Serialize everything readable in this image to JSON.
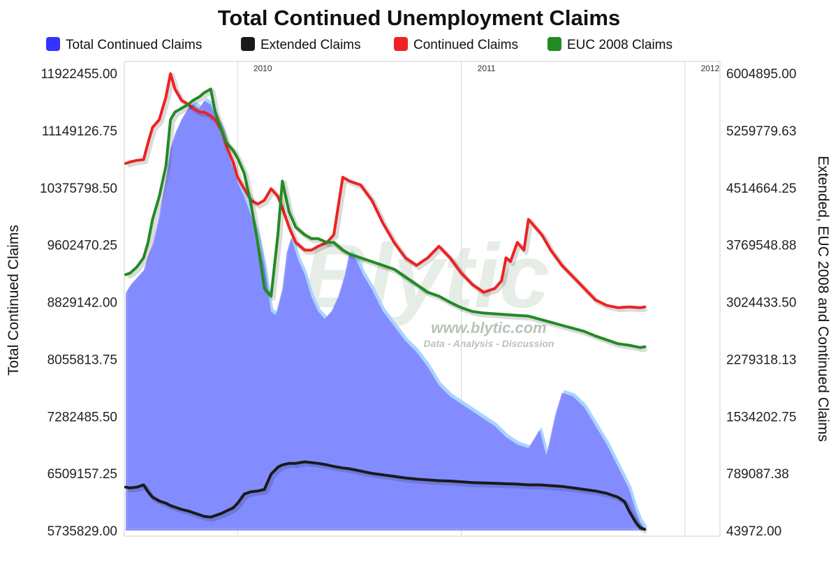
{
  "chart_data": {
    "type": "area",
    "title": "Total Continued Unemployment Claims",
    "ylabel_left": "Total Continued Claims",
    "ylabel_right": "Extended, EUC 2008 and Continued Claims",
    "x_labels": [
      "2010",
      "2011",
      "2012"
    ],
    "y_left_ticks": [
      "11922455.00",
      "11149126.75",
      "10375798.50",
      "9602470.25",
      "8829142.00",
      "8055813.75",
      "7282485.50",
      "6509157.25",
      "5735829.00"
    ],
    "y_right_ticks": [
      "6004895.00",
      "5259779.63",
      "4514664.25",
      "3769548.88",
      "3024433.50",
      "2279318.13",
      "1534202.75",
      "789087.38",
      "43972.00"
    ],
    "ylim_left": [
      5735829,
      11922455
    ],
    "ylim_right": [
      43972,
      6004895
    ],
    "x_range": [
      2009.5,
      2012.15
    ],
    "x_label_positions": [
      2010.0,
      2011.0,
      2012.0
    ],
    "grid": true,
    "legend_position": "top",
    "series": [
      {
        "name": "Total Continued Claims",
        "axis": "left",
        "style": "area",
        "color": "#7777ff",
        "points": [
          [
            2009.5,
            8950000
          ],
          [
            2009.52,
            9050000
          ],
          [
            2009.55,
            9150000
          ],
          [
            2009.58,
            9250000
          ],
          [
            2009.6,
            9450000
          ],
          [
            2009.62,
            9600000
          ],
          [
            2009.65,
            10000000
          ],
          [
            2009.68,
            10500000
          ],
          [
            2009.7,
            10900000
          ],
          [
            2009.72,
            11100000
          ],
          [
            2009.75,
            11300000
          ],
          [
            2009.78,
            11450000
          ],
          [
            2009.8,
            11500000
          ],
          [
            2009.83,
            11450000
          ],
          [
            2009.85,
            11550000
          ],
          [
            2009.88,
            11500000
          ],
          [
            2009.9,
            11350000
          ],
          [
            2009.93,
            11150000
          ],
          [
            2009.95,
            10900000
          ],
          [
            2009.98,
            10650000
          ],
          [
            2010.0,
            10450000
          ],
          [
            2010.03,
            10250000
          ],
          [
            2010.06,
            10000000
          ],
          [
            2010.09,
            9700000
          ],
          [
            2010.12,
            9300000
          ],
          [
            2010.14,
            8900000
          ],
          [
            2010.15,
            8700000
          ],
          [
            2010.17,
            8650000
          ],
          [
            2010.2,
            9000000
          ],
          [
            2010.22,
            9500000
          ],
          [
            2010.24,
            9700000
          ],
          [
            2010.27,
            9400000
          ],
          [
            2010.3,
            9200000
          ],
          [
            2010.33,
            8900000
          ],
          [
            2010.36,
            8700000
          ],
          [
            2010.39,
            8600000
          ],
          [
            2010.42,
            8700000
          ],
          [
            2010.45,
            8900000
          ],
          [
            2010.48,
            9200000
          ],
          [
            2010.5,
            9500000
          ],
          [
            2010.53,
            9400000
          ],
          [
            2010.56,
            9200000
          ],
          [
            2010.6,
            9000000
          ],
          [
            2010.65,
            8700000
          ],
          [
            2010.7,
            8500000
          ],
          [
            2010.75,
            8300000
          ],
          [
            2010.8,
            8150000
          ],
          [
            2010.85,
            7950000
          ],
          [
            2010.9,
            7700000
          ],
          [
            2010.95,
            7550000
          ],
          [
            2011.0,
            7450000
          ],
          [
            2011.05,
            7350000
          ],
          [
            2011.1,
            7250000
          ],
          [
            2011.15,
            7150000
          ],
          [
            2011.2,
            7000000
          ],
          [
            2011.25,
            6900000
          ],
          [
            2011.3,
            6850000
          ],
          [
            2011.35,
            7100000
          ],
          [
            2011.38,
            6750000
          ],
          [
            2011.42,
            7300000
          ],
          [
            2011.45,
            7600000
          ],
          [
            2011.5,
            7550000
          ],
          [
            2011.55,
            7400000
          ],
          [
            2011.6,
            7150000
          ],
          [
            2011.65,
            6900000
          ],
          [
            2011.7,
            6600000
          ],
          [
            2011.75,
            6300000
          ],
          [
            2011.78,
            6000000
          ],
          [
            2011.8,
            5850000
          ],
          [
            2011.82,
            5760000
          ]
        ]
      },
      {
        "name": "Extended Claims",
        "axis": "right",
        "style": "line",
        "color": "#1a1a1a",
        "points": [
          [
            2009.5,
            610000
          ],
          [
            2009.52,
            600000
          ],
          [
            2009.55,
            610000
          ],
          [
            2009.58,
            640000
          ],
          [
            2009.6,
            550000
          ],
          [
            2009.62,
            480000
          ],
          [
            2009.65,
            430000
          ],
          [
            2009.68,
            400000
          ],
          [
            2009.7,
            370000
          ],
          [
            2009.72,
            350000
          ],
          [
            2009.75,
            320000
          ],
          [
            2009.78,
            300000
          ],
          [
            2009.8,
            280000
          ],
          [
            2009.83,
            250000
          ],
          [
            2009.85,
            230000
          ],
          [
            2009.88,
            220000
          ],
          [
            2009.9,
            240000
          ],
          [
            2009.93,
            270000
          ],
          [
            2009.95,
            300000
          ],
          [
            2009.98,
            340000
          ],
          [
            2010.0,
            400000
          ],
          [
            2010.03,
            520000
          ],
          [
            2010.06,
            550000
          ],
          [
            2010.09,
            560000
          ],
          [
            2010.12,
            580000
          ],
          [
            2010.15,
            780000
          ],
          [
            2010.18,
            870000
          ],
          [
            2010.2,
            900000
          ],
          [
            2010.23,
            920000
          ],
          [
            2010.26,
            920000
          ],
          [
            2010.3,
            940000
          ],
          [
            2010.33,
            930000
          ],
          [
            2010.36,
            920000
          ],
          [
            2010.4,
            900000
          ],
          [
            2010.43,
            880000
          ],
          [
            2010.47,
            860000
          ],
          [
            2010.5,
            850000
          ],
          [
            2010.55,
            820000
          ],
          [
            2010.6,
            790000
          ],
          [
            2010.65,
            770000
          ],
          [
            2010.7,
            750000
          ],
          [
            2010.75,
            730000
          ],
          [
            2010.8,
            715000
          ],
          [
            2010.85,
            705000
          ],
          [
            2010.9,
            695000
          ],
          [
            2010.95,
            690000
          ],
          [
            2011.0,
            680000
          ],
          [
            2011.05,
            670000
          ],
          [
            2011.1,
            665000
          ],
          [
            2011.15,
            660000
          ],
          [
            2011.2,
            655000
          ],
          [
            2011.25,
            650000
          ],
          [
            2011.3,
            640000
          ],
          [
            2011.35,
            640000
          ],
          [
            2011.4,
            630000
          ],
          [
            2011.45,
            620000
          ],
          [
            2011.5,
            600000
          ],
          [
            2011.55,
            580000
          ],
          [
            2011.6,
            560000
          ],
          [
            2011.65,
            530000
          ],
          [
            2011.7,
            480000
          ],
          [
            2011.73,
            420000
          ],
          [
            2011.75,
            300000
          ],
          [
            2011.78,
            150000
          ],
          [
            2011.8,
            80000
          ],
          [
            2011.82,
            60000
          ]
        ]
      },
      {
        "name": "Continued Claims",
        "axis": "right",
        "style": "line",
        "color": "#ee2222",
        "points": [
          [
            2009.5,
            4830000
          ],
          [
            2009.52,
            4850000
          ],
          [
            2009.55,
            4870000
          ],
          [
            2009.58,
            4880000
          ],
          [
            2009.6,
            5100000
          ],
          [
            2009.62,
            5300000
          ],
          [
            2009.65,
            5400000
          ],
          [
            2009.68,
            5700000
          ],
          [
            2009.7,
            6000000
          ],
          [
            2009.72,
            5800000
          ],
          [
            2009.75,
            5650000
          ],
          [
            2009.78,
            5600000
          ],
          [
            2009.8,
            5550000
          ],
          [
            2009.83,
            5500000
          ],
          [
            2009.85,
            5500000
          ],
          [
            2009.88,
            5450000
          ],
          [
            2009.9,
            5400000
          ],
          [
            2009.93,
            5250000
          ],
          [
            2009.95,
            5050000
          ],
          [
            2009.98,
            4850000
          ],
          [
            2010.0,
            4650000
          ],
          [
            2010.03,
            4500000
          ],
          [
            2010.06,
            4350000
          ],
          [
            2010.09,
            4300000
          ],
          [
            2010.12,
            4350000
          ],
          [
            2010.15,
            4500000
          ],
          [
            2010.18,
            4400000
          ],
          [
            2010.2,
            4250000
          ],
          [
            2010.23,
            4000000
          ],
          [
            2010.26,
            3800000
          ],
          [
            2010.3,
            3700000
          ],
          [
            2010.33,
            3700000
          ],
          [
            2010.36,
            3750000
          ],
          [
            2010.4,
            3800000
          ],
          [
            2010.43,
            3900000
          ],
          [
            2010.47,
            4650000
          ],
          [
            2010.5,
            4600000
          ],
          [
            2010.55,
            4550000
          ],
          [
            2010.6,
            4350000
          ],
          [
            2010.65,
            4050000
          ],
          [
            2010.7,
            3800000
          ],
          [
            2010.75,
            3600000
          ],
          [
            2010.8,
            3500000
          ],
          [
            2010.85,
            3600000
          ],
          [
            2010.9,
            3750000
          ],
          [
            2010.95,
            3600000
          ],
          [
            2011.0,
            3400000
          ],
          [
            2011.05,
            3250000
          ],
          [
            2011.1,
            3150000
          ],
          [
            2011.15,
            3200000
          ],
          [
            2011.18,
            3300000
          ],
          [
            2011.2,
            3600000
          ],
          [
            2011.22,
            3550000
          ],
          [
            2011.25,
            3800000
          ],
          [
            2011.28,
            3700000
          ],
          [
            2011.3,
            4100000
          ],
          [
            2011.33,
            4000000
          ],
          [
            2011.36,
            3900000
          ],
          [
            2011.4,
            3700000
          ],
          [
            2011.45,
            3500000
          ],
          [
            2011.5,
            3350000
          ],
          [
            2011.55,
            3200000
          ],
          [
            2011.6,
            3050000
          ],
          [
            2011.65,
            2980000
          ],
          [
            2011.7,
            2950000
          ],
          [
            2011.75,
            2960000
          ],
          [
            2011.8,
            2950000
          ],
          [
            2011.82,
            2960000
          ]
        ]
      },
      {
        "name": "EUC 2008 Claims",
        "axis": "right",
        "style": "line",
        "color": "#228b22",
        "points": [
          [
            2009.5,
            3380000
          ],
          [
            2009.52,
            3400000
          ],
          [
            2009.55,
            3480000
          ],
          [
            2009.58,
            3600000
          ],
          [
            2009.6,
            3800000
          ],
          [
            2009.62,
            4100000
          ],
          [
            2009.65,
            4400000
          ],
          [
            2009.68,
            4800000
          ],
          [
            2009.7,
            5400000
          ],
          [
            2009.72,
            5500000
          ],
          [
            2009.75,
            5550000
          ],
          [
            2009.78,
            5600000
          ],
          [
            2009.8,
            5650000
          ],
          [
            2009.83,
            5700000
          ],
          [
            2009.85,
            5750000
          ],
          [
            2009.88,
            5800000
          ],
          [
            2009.9,
            5500000
          ],
          [
            2009.93,
            5250000
          ],
          [
            2009.95,
            5100000
          ],
          [
            2009.98,
            5000000
          ],
          [
            2010.0,
            4900000
          ],
          [
            2010.03,
            4700000
          ],
          [
            2010.06,
            4300000
          ],
          [
            2010.09,
            3800000
          ],
          [
            2010.12,
            3200000
          ],
          [
            2010.15,
            3100000
          ],
          [
            2010.18,
            3900000
          ],
          [
            2010.2,
            4600000
          ],
          [
            2010.23,
            4200000
          ],
          [
            2010.26,
            4000000
          ],
          [
            2010.3,
            3900000
          ],
          [
            2010.33,
            3850000
          ],
          [
            2010.36,
            3850000
          ],
          [
            2010.4,
            3800000
          ],
          [
            2010.43,
            3800000
          ],
          [
            2010.47,
            3700000
          ],
          [
            2010.5,
            3650000
          ],
          [
            2010.55,
            3600000
          ],
          [
            2010.6,
            3550000
          ],
          [
            2010.65,
            3500000
          ],
          [
            2010.7,
            3450000
          ],
          [
            2010.75,
            3350000
          ],
          [
            2010.8,
            3250000
          ],
          [
            2010.85,
            3150000
          ],
          [
            2010.9,
            3100000
          ],
          [
            2010.95,
            3020000
          ],
          [
            2011.0,
            2950000
          ],
          [
            2011.05,
            2900000
          ],
          [
            2011.1,
            2880000
          ],
          [
            2011.15,
            2870000
          ],
          [
            2011.2,
            2860000
          ],
          [
            2011.25,
            2850000
          ],
          [
            2011.3,
            2840000
          ],
          [
            2011.35,
            2800000
          ],
          [
            2011.4,
            2760000
          ],
          [
            2011.45,
            2720000
          ],
          [
            2011.5,
            2680000
          ],
          [
            2011.55,
            2640000
          ],
          [
            2011.6,
            2580000
          ],
          [
            2011.65,
            2530000
          ],
          [
            2011.7,
            2480000
          ],
          [
            2011.75,
            2460000
          ],
          [
            2011.8,
            2430000
          ],
          [
            2011.82,
            2440000
          ]
        ]
      }
    ],
    "watermark": {
      "main": "Blytic",
      "url": "www.blytic.com",
      "tagline": "Data - Analysis - Discussion"
    }
  }
}
